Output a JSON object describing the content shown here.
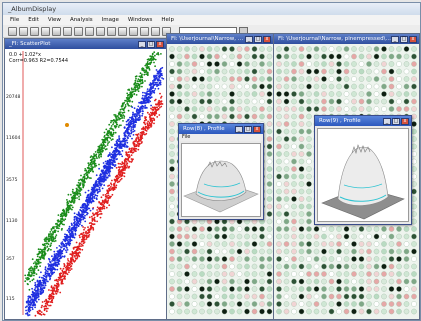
{
  "app": {
    "title": "_AlbumDisplay",
    "menu": [
      "File",
      "Edit",
      "View",
      "Analysis",
      "Image",
      "Windows",
      "Help"
    ]
  },
  "scatter_window": {
    "title": "_FI: ScatterPlot",
    "equation_lines": [
      "0.0 + 1.02*x",
      "Corr=0.963  R2=0.7544"
    ],
    "y_ticks": [
      "20748",
      "11604",
      "3575",
      "1130",
      "357",
      "115"
    ],
    "colors": {
      "above": "#1a8c1a",
      "center": "#1f2fe0",
      "below": "#e01e1e",
      "outlier": "#e08a00"
    }
  },
  "grid_window_1": {
    "title": "FI: \\Userjournal\\Narrow, pinempressed\\Name_Image 1, Set_1"
  },
  "grid_window_2": {
    "title": "FI: \\Userjournal\\Narrow, pinempressed\\Name_Image 1, Set_1"
  },
  "profile_1": {
    "title": "Row(8) , Profile",
    "menu_label": "File"
  },
  "profile_2": {
    "title": "Row(9) , Profile"
  },
  "window_buttons": {
    "minimize": "_",
    "maximize": "□",
    "close": "x"
  }
}
